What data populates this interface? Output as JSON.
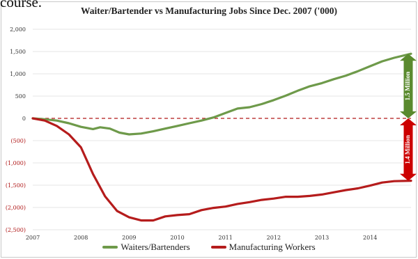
{
  "page": {
    "top_fragment": "course."
  },
  "chart_data": {
    "type": "line",
    "title": "Waiter/Bartender vs Manufacturing Jobs Since Dec. 2007 ('000)",
    "xlabel": "",
    "ylabel": "",
    "x_ticks": [
      "2007",
      "2008",
      "2009",
      "2010",
      "2011",
      "2012",
      "2013",
      "2014"
    ],
    "y_ticks": [
      {
        "value": 2000,
        "label": "2,000"
      },
      {
        "value": 1500,
        "label": "1,500"
      },
      {
        "value": 1000,
        "label": "1,000"
      },
      {
        "value": 500,
        "label": "500"
      },
      {
        "value": 0,
        "label": "0"
      },
      {
        "value": -500,
        "label": "(500)"
      },
      {
        "value": -1000,
        "label": "(1,000)"
      },
      {
        "value": -1500,
        "label": "(1,500)"
      },
      {
        "value": -2000,
        "label": "(2,000)"
      },
      {
        "value": -2500,
        "label": "(2,500)"
      }
    ],
    "xlim": [
      2007.0,
      2014.85
    ],
    "ylim": [
      -2500,
      2000
    ],
    "grid": true,
    "legend_position": "bottom",
    "reference_line": {
      "value": 0,
      "style": "dashed",
      "color": "#b01818"
    },
    "annotations": [
      {
        "text": "1.5 Million",
        "color": "#5a8a2e",
        "from": 0,
        "to": 1450
      },
      {
        "text": "1.4 Million",
        "color": "#cc0000",
        "from": -1400,
        "to": 0
      }
    ],
    "series": [
      {
        "name": "Waiters/Bartenders",
        "color": "#6e9a4a",
        "points": [
          [
            2007.0,
            0
          ],
          [
            2007.25,
            -20
          ],
          [
            2007.5,
            -50
          ],
          [
            2007.75,
            -110
          ],
          [
            2008.0,
            -190
          ],
          [
            2008.25,
            -240
          ],
          [
            2008.4,
            -200
          ],
          [
            2008.6,
            -230
          ],
          [
            2008.8,
            -320
          ],
          [
            2009.0,
            -360
          ],
          [
            2009.25,
            -340
          ],
          [
            2009.5,
            -290
          ],
          [
            2009.75,
            -230
          ],
          [
            2010.0,
            -170
          ],
          [
            2010.25,
            -110
          ],
          [
            2010.5,
            -50
          ],
          [
            2010.75,
            20
          ],
          [
            2011.0,
            120
          ],
          [
            2011.25,
            220
          ],
          [
            2011.5,
            250
          ],
          [
            2011.75,
            320
          ],
          [
            2012.0,
            410
          ],
          [
            2012.25,
            510
          ],
          [
            2012.5,
            620
          ],
          [
            2012.75,
            720
          ],
          [
            2013.0,
            790
          ],
          [
            2013.25,
            880
          ],
          [
            2013.5,
            960
          ],
          [
            2013.75,
            1060
          ],
          [
            2014.0,
            1170
          ],
          [
            2014.25,
            1280
          ],
          [
            2014.5,
            1360
          ],
          [
            2014.85,
            1450
          ]
        ]
      },
      {
        "name": "Manufacturing Workers",
        "color": "#b51c1c",
        "points": [
          [
            2007.0,
            0
          ],
          [
            2007.25,
            -50
          ],
          [
            2007.5,
            -170
          ],
          [
            2007.75,
            -360
          ],
          [
            2008.0,
            -650
          ],
          [
            2008.25,
            -1250
          ],
          [
            2008.5,
            -1750
          ],
          [
            2008.75,
            -2080
          ],
          [
            2009.0,
            -2220
          ],
          [
            2009.25,
            -2290
          ],
          [
            2009.5,
            -2290
          ],
          [
            2009.75,
            -2200
          ],
          [
            2010.0,
            -2170
          ],
          [
            2010.25,
            -2150
          ],
          [
            2010.5,
            -2060
          ],
          [
            2010.75,
            -2010
          ],
          [
            2011.0,
            -1980
          ],
          [
            2011.25,
            -1920
          ],
          [
            2011.5,
            -1880
          ],
          [
            2011.75,
            -1830
          ],
          [
            2012.0,
            -1800
          ],
          [
            2012.25,
            -1760
          ],
          [
            2012.5,
            -1760
          ],
          [
            2012.75,
            -1740
          ],
          [
            2013.0,
            -1710
          ],
          [
            2013.25,
            -1660
          ],
          [
            2013.5,
            -1610
          ],
          [
            2013.75,
            -1570
          ],
          [
            2014.0,
            -1510
          ],
          [
            2014.25,
            -1440
          ],
          [
            2014.5,
            -1410
          ],
          [
            2014.85,
            -1400
          ]
        ]
      }
    ]
  }
}
